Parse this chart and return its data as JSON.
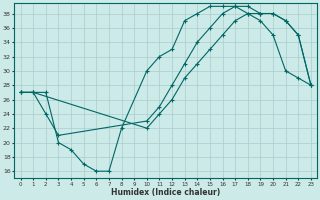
{
  "xlabel": "Humidex (Indice chaleur)",
  "bg_color": "#cceae7",
  "line_color": "#006666",
  "grid_color": "#aacccc",
  "xlim": [
    -0.5,
    23.5
  ],
  "ylim": [
    15,
    39.5
  ],
  "yticks": [
    16,
    18,
    20,
    22,
    24,
    26,
    28,
    30,
    32,
    34,
    36,
    38
  ],
  "xticks": [
    0,
    1,
    2,
    3,
    4,
    5,
    6,
    7,
    8,
    9,
    10,
    11,
    12,
    13,
    14,
    15,
    16,
    17,
    18,
    19,
    20,
    21,
    22,
    23
  ],
  "line1_x": [
    0,
    1,
    2,
    3,
    4,
    5,
    6,
    7,
    8,
    10,
    11,
    12,
    13,
    14,
    15,
    16,
    17,
    18,
    19,
    20,
    21,
    22,
    23
  ],
  "line1_y": [
    27,
    27,
    27,
    20,
    19,
    17,
    16,
    16,
    22,
    30,
    32,
    33,
    37,
    38,
    39,
    39,
    39,
    38,
    37,
    35,
    30,
    29,
    28
  ],
  "line2_x": [
    0,
    1,
    2,
    3,
    10,
    11,
    12,
    13,
    14,
    15,
    16,
    17,
    18,
    19,
    20,
    21,
    22,
    23
  ],
  "line2_y": [
    27,
    27,
    24,
    21,
    23,
    25,
    28,
    31,
    34,
    36,
    38,
    39,
    39,
    38,
    38,
    37,
    35,
    28
  ],
  "line3_x": [
    0,
    1,
    10,
    11,
    12,
    13,
    14,
    15,
    16,
    17,
    18,
    19,
    20,
    21,
    22,
    23
  ],
  "line3_y": [
    27,
    27,
    22,
    24,
    26,
    29,
    31,
    33,
    35,
    37,
    38,
    38,
    38,
    37,
    35,
    28
  ]
}
